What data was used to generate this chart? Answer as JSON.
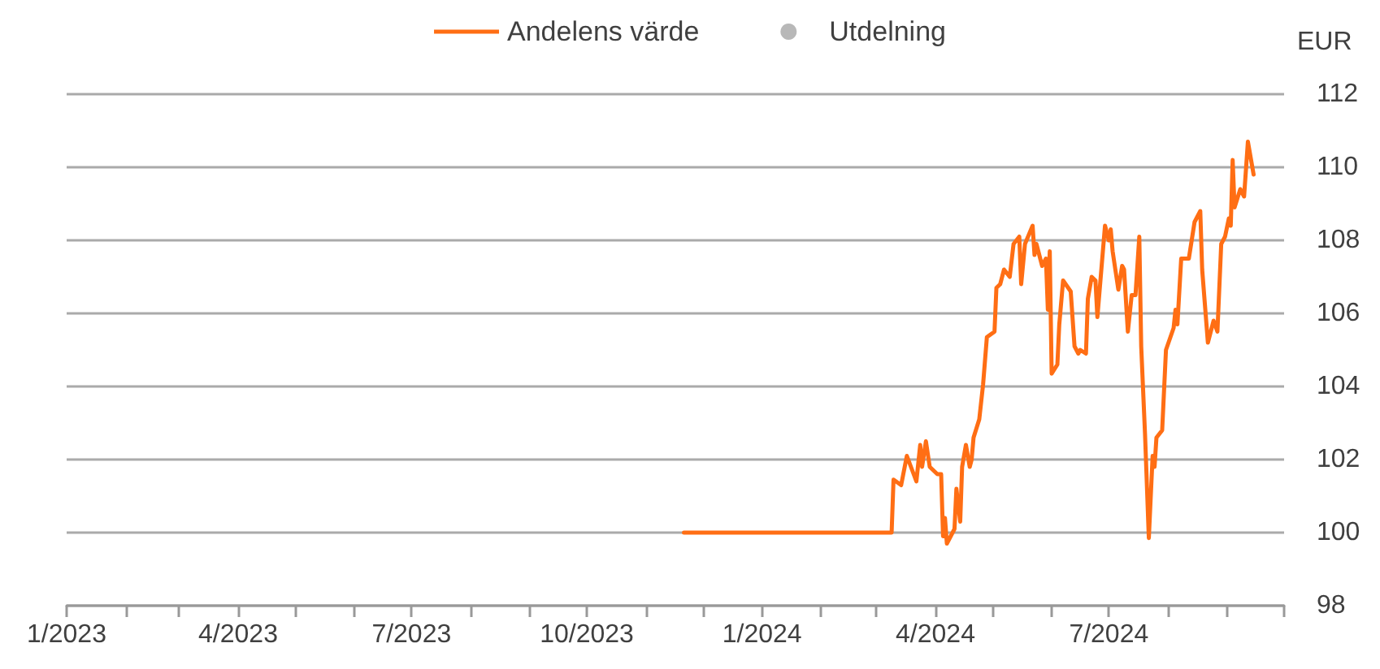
{
  "chart_data": {
    "type": "line",
    "ylabel": "EUR",
    "legend": "top",
    "grid": "y",
    "marker": "none",
    "line_style": "solid",
    "xlim": [
      "2023-01-01",
      "2024-10-01"
    ],
    "xticks": [
      {
        "value": "2023-01-01",
        "label": "1/2023"
      },
      {
        "value": "2023-02-01",
        "label": null
      },
      {
        "value": "2023-03-01",
        "label": null
      },
      {
        "value": "2023-04-01",
        "label": "4/2023"
      },
      {
        "value": "2023-05-01",
        "label": null
      },
      {
        "value": "2023-06-01",
        "label": null
      },
      {
        "value": "2023-07-01",
        "label": "7/2023"
      },
      {
        "value": "2023-08-01",
        "label": null
      },
      {
        "value": "2023-09-01",
        "label": null
      },
      {
        "value": "2023-10-01",
        "label": "10/2023"
      },
      {
        "value": "2023-11-01",
        "label": null
      },
      {
        "value": "2023-12-01",
        "label": null
      },
      {
        "value": "2024-01-01",
        "label": "1/2024"
      },
      {
        "value": "2024-02-01",
        "label": null
      },
      {
        "value": "2024-03-01",
        "label": null
      },
      {
        "value": "2024-04-01",
        "label": "4/2024"
      },
      {
        "value": "2024-05-01",
        "label": null
      },
      {
        "value": "2024-06-01",
        "label": null
      },
      {
        "value": "2024-07-01",
        "label": "7/2024"
      },
      {
        "value": "2024-08-01",
        "label": null
      },
      {
        "value": "2024-09-01",
        "label": null
      },
      {
        "value": "2024-10-01",
        "label": null
      }
    ],
    "ylim": [
      98,
      112
    ],
    "yticks": [
      98,
      100,
      102,
      104,
      106,
      108,
      110,
      112
    ],
    "series": [
      {
        "name": "Andelens värde",
        "color": "#ff6e14",
        "x": [
          "2023-11-21",
          "2024-03-09",
          "2024-03-10",
          "2024-03-14",
          "2024-03-17",
          "2024-03-22",
          "2024-03-24",
          "2024-03-25",
          "2024-03-27",
          "2024-03-29",
          "2024-04-02",
          "2024-04-04",
          "2024-04-05",
          "2024-04-06",
          "2024-04-07",
          "2024-04-11",
          "2024-04-12",
          "2024-04-14",
          "2024-04-15",
          "2024-04-17",
          "2024-04-19",
          "2024-04-20",
          "2024-04-21",
          "2024-04-24",
          "2024-04-26",
          "2024-04-28",
          "2024-05-02",
          "2024-05-03",
          "2024-05-05",
          "2024-05-07",
          "2024-05-10",
          "2024-05-12",
          "2024-05-15",
          "2024-05-16",
          "2024-05-18",
          "2024-05-22",
          "2024-05-23",
          "2024-05-24",
          "2024-05-27",
          "2024-05-29",
          "2024-05-30",
          "2024-05-31",
          "2024-06-01",
          "2024-06-04",
          "2024-06-05",
          "2024-06-07",
          "2024-06-11",
          "2024-06-13",
          "2024-06-15",
          "2024-06-16",
          "2024-06-19",
          "2024-06-20",
          "2024-06-22",
          "2024-06-24",
          "2024-06-25",
          "2024-06-29",
          "2024-07-01",
          "2024-07-02",
          "2024-07-03",
          "2024-07-06",
          "2024-07-08",
          "2024-07-09",
          "2024-07-11",
          "2024-07-13",
          "2024-07-15",
          "2024-07-17",
          "2024-07-18",
          "2024-07-20",
          "2024-07-22",
          "2024-07-24",
          "2024-07-25",
          "2024-07-26",
          "2024-07-29",
          "2024-07-31",
          "2024-08-04",
          "2024-08-05",
          "2024-08-06",
          "2024-08-08",
          "2024-08-12",
          "2024-08-15",
          "2024-08-18",
          "2024-08-19",
          "2024-08-22",
          "2024-08-25",
          "2024-08-27",
          "2024-08-29",
          "2024-08-31",
          "2024-09-02",
          "2024-09-03",
          "2024-09-04",
          "2024-09-05",
          "2024-09-08",
          "2024-09-10",
          "2024-09-12",
          "2024-09-15"
        ],
        "values": [
          100,
          100,
          101.45,
          101.3,
          102.1,
          101.4,
          102.4,
          101.8,
          102.5,
          101.8,
          101.6,
          101.6,
          99.9,
          100.4,
          99.7,
          100.1,
          101.2,
          100.3,
          101.8,
          102.4,
          101.8,
          102,
          102.6,
          103.1,
          104.05,
          105.35,
          105.5,
          106.7,
          106.8,
          107.2,
          107,
          107.9,
          108.1,
          106.8,
          107.9,
          108.4,
          107.6,
          107.9,
          107.3,
          107.5,
          106.1,
          107.7,
          104.35,
          104.6,
          105.7,
          106.9,
          106.6,
          105.1,
          104.9,
          105,
          104.9,
          106.4,
          107,
          106.9,
          105.9,
          108.4,
          108,
          108.3,
          107.7,
          106.65,
          107.3,
          107.2,
          105.5,
          106.5,
          106.5,
          108.1,
          105.1,
          102.7,
          99.85,
          102.1,
          101.8,
          102.6,
          102.8,
          105,
          105.6,
          106.1,
          105.7,
          107.5,
          107.5,
          108.5,
          108.8,
          107.2,
          105.2,
          105.8,
          105.5,
          107.9,
          108.1,
          108.6,
          108.4,
          110.2,
          108.9,
          109.4,
          109.2,
          110.7,
          109.8
        ]
      },
      {
        "name": "Utdelning",
        "type": "scatter",
        "color": "#a6a6a6"
      }
    ]
  }
}
